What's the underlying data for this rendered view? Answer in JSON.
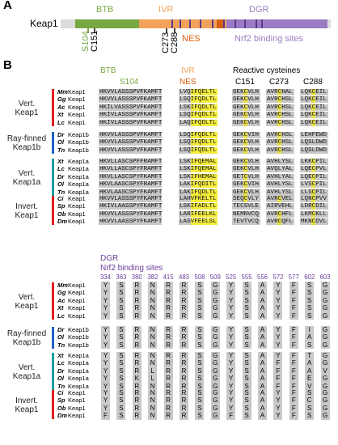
{
  "panel_a": {
    "letter": "A",
    "protein": "Keap1",
    "domains": [
      {
        "name": "BTB",
        "color": "#77a843"
      },
      {
        "name": "IVR",
        "color": "#f2a25a"
      },
      {
        "name": "DGR",
        "color": "#9b7cc4"
      }
    ],
    "markers": {
      "s104": "S104",
      "c151": "C151",
      "c273": "C273",
      "c288": "C288",
      "nes": "NES",
      "nrf2": "Nrf2 binding sites"
    }
  },
  "panel_b": {
    "letter": "B",
    "headers": {
      "btb": "BTB",
      "s104": "S104",
      "ivr": "IVR",
      "nes": "NES",
      "reactive": "Reactive cysteines",
      "c151": "C151",
      "c273": "C273",
      "c288": "C288"
    },
    "groups": [
      {
        "label": "Vert.\nKeap1",
        "color": "#e02020",
        "rows": [
          {
            "sp": "Mm",
            "gene": "Keap1",
            "btb": "HKVVLASSSPVFKAMFT",
            "ivr": "LVQIFQELTL",
            "c151": "GEKCVLH",
            "c273": "AVRCHAL",
            "c288": "LQKCEIL"
          },
          {
            "sp": "Gg",
            "gene": "Keap1",
            "btb": "HKVVLASSSPVFKAMFT",
            "ivr": "LSQIFQDLTL",
            "c151": "GEKCVLH",
            "c273": "AVRCHSL",
            "c288": "LQKCEIL"
          },
          {
            "sp": "Ac",
            "gene": "Keap1",
            "btb": "HKILVASSSPVFKAMFT",
            "ivr": "LSKIFQDLTL",
            "c151": "GEKCVLH",
            "c273": "AVRCHSL",
            "c288": "LQKCEIL"
          },
          {
            "sp": "Xt",
            "gene": "Keap1",
            "btb": "HKIVLASSSPVFKAMFT",
            "ivr": "LSQIFQDLTL",
            "c151": "GEKCVLH",
            "c273": "AVRCHSL",
            "c288": "LQKCEIL"
          },
          {
            "sp": "Lc",
            "gene": "Keap1",
            "btb": "HKIVLASSSPVFKAMFT",
            "ivr": "LAQIFQDLTL",
            "c151": "GEKCVLH",
            "c273": "AVRCHSL",
            "c288": "LQKCEIL"
          }
        ]
      },
      {
        "label": "Ray-finned\nKeap1b",
        "color": "#2060c0",
        "rows": [
          {
            "sp": "Dr",
            "gene": "Keap1b",
            "btb": "HKVVLASSSPVFKAMFT",
            "ivr": "LSQIFQDLTL",
            "c151": "GEKCVIH",
            "c273": "AVRCHSL",
            "c288": "LEHFEWD"
          },
          {
            "sp": "Ol",
            "gene": "Keap1b",
            "btb": "HKVVLASSSPVFKAMFT",
            "ivr": "LSQIFQDLTL",
            "c151": "GEKCVLH",
            "c273": "AVRCHSL",
            "c288": "LQSLDWD"
          },
          {
            "sp": "Tn",
            "gene": "Keap1b",
            "btb": "HKVVLASSSPVFKAMFT",
            "ivr": "LSQIFQDLTL",
            "c151": "GEKCVLH",
            "c273": "AVRCHSL",
            "c288": "LQSLDWD"
          }
        ]
      },
      {
        "label": "Vert.\nKeap1a",
        "color": "#20a0a0",
        "rows": [
          {
            "sp": "Xt",
            "gene": "Keap1a",
            "btb": "HKVLLASCSPFFRAMFT",
            "ivr": "LSKIFQEMAL",
            "c151": "GEKCVLH",
            "c273": "AVHLYSL",
            "c288": "LKKCPIL"
          },
          {
            "sp": "Lc",
            "gene": "Keap1a",
            "btb": "HKVLLASCSPYFRAMFT",
            "ivr": "LSKIFQEMAL",
            "c151": "GEKCVLH",
            "c273": "AVQLYAL",
            "c288": "LQECPVL"
          },
          {
            "sp": "Dr",
            "gene": "Keap1a",
            "btb": "HKVLLASCSPYFKAMFT",
            "ivr": "LSKIFHEMAL",
            "c151": "GETCVLH",
            "c273": "AVHLYAL",
            "c288": "LQECPIL"
          },
          {
            "sp": "Ol",
            "gene": "Keap1a",
            "btb": "HKVLAASCSPYFRAMFT",
            "ivr": "LAKIFQDITL",
            "c151": "GEKCVIH",
            "c273": "AVHLYSL",
            "c288": "LVSCPIL"
          },
          {
            "sp": "Tn",
            "gene": "Keap1a",
            "btb": "HKVLAASCSPYFKAMFT",
            "ivr": "LAKIFQDLTL",
            "c151": "GEKCVLH",
            "c273": "AVHLYSL",
            "c288": "LLSCPIL"
          }
        ]
      },
      {
        "label": "Invert.\nKeap1",
        "color": "#e02020",
        "rows": [
          {
            "sp": "Ci",
            "gene": "Keap1",
            "btb": "HKVVLASSSPYFKAMFT",
            "ivr": "LAHVFKELTL",
            "c151": "SEQCVLY",
            "c273": "AVRCVEL",
            "c288": "LQNCPVV"
          },
          {
            "sp": "Sp",
            "gene": "Keap1",
            "btb": "HKIVLAASSPYFKAMFT",
            "ivr": "LSKIFADLTL",
            "c151": "TECSVLE",
            "c273": "AIRVEHL",
            "c288": "LDRCDIL"
          },
          {
            "sp": "Ob",
            "gene": "Keap1",
            "btb": "HKVVLASSSPYFKAMFT",
            "ivr": "LARIFEELKL",
            "c151": "NEMNVCQ",
            "c273": "AVRCHFL",
            "c288": "LKMCKLL"
          },
          {
            "sp": "Dm",
            "gene": "Keap1",
            "btb": "HKVVLAASSPYFKAMFT",
            "ivr": "LASVFEELSL",
            "c151": "TEVTVCQ",
            "c273": "AVRCQFL",
            "c288": "MKNCDVL"
          }
        ]
      }
    ],
    "dgr": {
      "title": "DGR",
      "subtitle": "Nrf2 binding sites",
      "positions": [
        "334",
        "363",
        "380",
        "382",
        "415",
        "483",
        "508",
        "509",
        "525",
        "555",
        "556",
        "572",
        "577",
        "602",
        "603"
      ],
      "groups": [
        {
          "rows": [
            {
              "sp": "Mm",
              "gene": "Keap1",
              "aa": [
                "Y",
                "S",
                "R",
                "N",
                "R",
                "R",
                "S",
                "G",
                "Y",
                "S",
                "A",
                "Y",
                "F",
                "S",
                "G"
              ]
            },
            {
              "sp": "Gg",
              "gene": "Keap1",
              "aa": [
                "Y",
                "S",
                "R",
                "N",
                "R",
                "R",
                "S",
                "G",
                "Y",
                "S",
                "A",
                "Y",
                "F",
                "S",
                "G"
              ]
            },
            {
              "sp": "Ac",
              "gene": "Keap1",
              "aa": [
                "Y",
                "S",
                "R",
                "N",
                "R",
                "R",
                "S",
                "G",
                "Y",
                "S",
                "A",
                "Y",
                "F",
                "S",
                "G"
              ]
            },
            {
              "sp": "Xt",
              "gene": "Keap1",
              "aa": [
                "Y",
                "S",
                "R",
                "N",
                "R",
                "R",
                "S",
                "G",
                "Y",
                "S",
                "A",
                "Y",
                "F",
                "S",
                "G"
              ]
            },
            {
              "sp": "Lc",
              "gene": "Keap1",
              "aa": [
                "Y",
                "S",
                "R",
                "N",
                "R",
                "R",
                "S",
                "G",
                "Y",
                "S",
                "A",
                "Y",
                "F",
                "S",
                "G"
              ]
            }
          ]
        },
        {
          "rows": [
            {
              "sp": "Dr",
              "gene": "Keap1b",
              "aa": [
                "Y",
                "S",
                "R",
                "N",
                "R",
                "R",
                "S",
                "G",
                "Y",
                "S",
                "A",
                "Y",
                "F",
                "I",
                "G"
              ]
            },
            {
              "sp": "Ol",
              "gene": "Keap1b",
              "aa": [
                "Y",
                "S",
                "R",
                "N",
                "R",
                "R",
                "S",
                "G",
                "Y",
                "S",
                "A",
                "Y",
                "F",
                "A",
                "G"
              ]
            },
            {
              "sp": "Tn",
              "gene": "Keap1b",
              "aa": [
                "Y",
                "S",
                "R",
                "N",
                "R",
                "R",
                "S",
                "G",
                "Y",
                "S",
                "A",
                "Y",
                "F",
                "S",
                "G"
              ]
            }
          ]
        },
        {
          "rows": [
            {
              "sp": "Xt",
              "gene": "Keap1a",
              "aa": [
                "Y",
                "S",
                "R",
                "N",
                "R",
                "R",
                "S",
                "G",
                "Y",
                "S",
                "A",
                "Y",
                "F",
                "T",
                "G"
              ]
            },
            {
              "sp": "Lc",
              "gene": "Keap1a",
              "aa": [
                "Y",
                "S",
                "R",
                "N",
                "R",
                "R",
                "S",
                "G",
                "Y",
                "S",
                "A",
                "F",
                "F",
                "A",
                "G"
              ]
            },
            {
              "sp": "Dr",
              "gene": "Keap1a",
              "aa": [
                "Y",
                "S",
                "R",
                "L",
                "R",
                "R",
                "S",
                "G",
                "Y",
                "S",
                "A",
                "F",
                "F",
                "A",
                "V"
              ]
            },
            {
              "sp": "Ol",
              "gene": "Keap1a",
              "aa": [
                "Y",
                "S",
                "K",
                "L",
                "R",
                "R",
                "S",
                "G",
                "Y",
                "S",
                "A",
                "F",
                "F",
                "E",
                "G"
              ]
            },
            {
              "sp": "Tn",
              "gene": "Keap1a",
              "aa": [
                "Y",
                "S",
                "R",
                "N",
                "R",
                "R",
                "S",
                "G",
                "Y",
                "S",
                "A",
                "F",
                "F",
                "V",
                "G"
              ]
            }
          ]
        },
        {
          "rows": [
            {
              "sp": "Ci",
              "gene": "Keap1",
              "aa": [
                "Y",
                "S",
                "R",
                "N",
                "R",
                "R",
                "S",
                "G",
                "Y",
                "S",
                "A",
                "Y",
                "F",
                "S",
                "G"
              ]
            },
            {
              "sp": "Sp",
              "gene": "Keap1",
              "aa": [
                "Y",
                "S",
                "R",
                "N",
                "R",
                "R",
                "S",
                "G",
                "Y",
                "S",
                "A",
                "Y",
                "F",
                "C",
                "G"
              ]
            },
            {
              "sp": "Ob",
              "gene": "Keap1",
              "aa": [
                "Y",
                "S",
                "R",
                "N",
                "R",
                "R",
                "S",
                "G",
                "Y",
                "S",
                "A",
                "Y",
                "F",
                "S",
                "G"
              ]
            },
            {
              "sp": "Dm",
              "gene": "Keap1",
              "aa": [
                "F",
                "S",
                "R",
                "N",
                "R",
                "R",
                "S",
                "G",
                "F",
                "S",
                "A",
                "Y",
                "F",
                "S",
                "G"
              ]
            }
          ]
        }
      ]
    }
  }
}
